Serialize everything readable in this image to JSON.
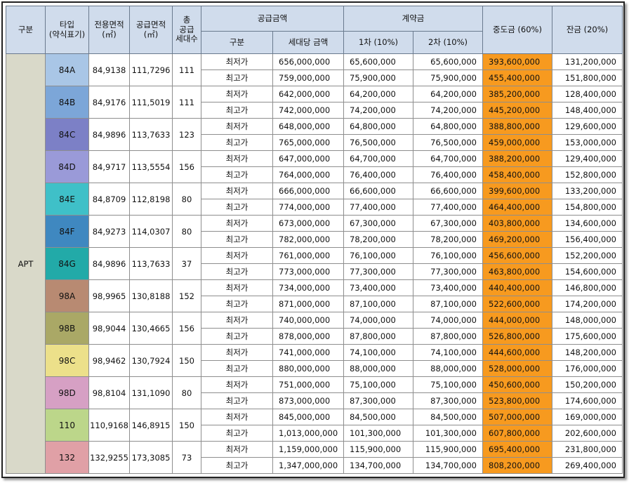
{
  "headers": {
    "category": "구분",
    "type": "타입\n(약식표기)",
    "exclusive_area": "전용면적\n(㎡)",
    "supply_area": "공급면적\n(㎡)",
    "households": "총\n공급\n세대수",
    "supply_amount": "공급금액",
    "sub_category": "구분",
    "unit_price": "세대당 금액",
    "deposit": "계약금",
    "deposit_1": "1차 (10%)",
    "deposit_2": "2차 (10%)",
    "middle_payment": "중도금 (60%)",
    "balance": "잔금 (20%)"
  },
  "category_value": "APT",
  "colors": {
    "header_bg": "#d0dcec",
    "category_bg": "#d9d9c9",
    "middle_payment_bg": "#f79a1f"
  },
  "types": [
    {
      "type": "84A",
      "color": "#a9c6e6",
      "exclusive": "84,9138",
      "supply": "111,7296",
      "households": "111",
      "rows": [
        {
          "label": "최저가",
          "price": "656,000,000",
          "d1": "65,600,000",
          "d2": "65,600,000",
          "mid": "393,600,000",
          "bal": "131,200,000"
        },
        {
          "label": "최고가",
          "price": "759,000,000",
          "d1": "75,900,000",
          "d2": "75,900,000",
          "mid": "455,400,000",
          "bal": "151,800,000"
        }
      ]
    },
    {
      "type": "84B",
      "color": "#7ca6d8",
      "exclusive": "84,9176",
      "supply": "111,5019",
      "households": "111",
      "rows": [
        {
          "label": "최저가",
          "price": "642,000,000",
          "d1": "64,200,000",
          "d2": "64,200,000",
          "mid": "385,200,000",
          "bal": "128,400,000"
        },
        {
          "label": "최고가",
          "price": "742,000,000",
          "d1": "74,200,000",
          "d2": "74,200,000",
          "mid": "445,200,000",
          "bal": "148,400,000"
        }
      ]
    },
    {
      "type": "84C",
      "color": "#7c80c6",
      "exclusive": "84,9896",
      "supply": "113,7633",
      "households": "123",
      "rows": [
        {
          "label": "최저가",
          "price": "648,000,000",
          "d1": "64,800,000",
          "d2": "64,800,000",
          "mid": "388,800,000",
          "bal": "129,600,000"
        },
        {
          "label": "최고가",
          "price": "765,000,000",
          "d1": "76,500,000",
          "d2": "76,500,000",
          "mid": "459,000,000",
          "bal": "153,000,000"
        }
      ]
    },
    {
      "type": "84D",
      "color": "#9a9ad8",
      "exclusive": "84,9717",
      "supply": "113,5554",
      "households": "156",
      "rows": [
        {
          "label": "최저가",
          "price": "647,000,000",
          "d1": "64,700,000",
          "d2": "64,700,000",
          "mid": "388,200,000",
          "bal": "129,400,000"
        },
        {
          "label": "최고가",
          "price": "764,000,000",
          "d1": "76,400,000",
          "d2": "76,400,000",
          "mid": "458,400,000",
          "bal": "152,800,000"
        }
      ]
    },
    {
      "type": "84E",
      "color": "#3fc0c8",
      "exclusive": "84,8709",
      "supply": "112,8198",
      "households": "80",
      "rows": [
        {
          "label": "최저가",
          "price": "666,000,000",
          "d1": "66,600,000",
          "d2": "66,600,000",
          "mid": "399,600,000",
          "bal": "133,200,000"
        },
        {
          "label": "최고가",
          "price": "774,000,000",
          "d1": "77,400,000",
          "d2": "77,400,000",
          "mid": "464,400,000",
          "bal": "154,800,000"
        }
      ]
    },
    {
      "type": "84F",
      "color": "#3f88c0",
      "exclusive": "84,9273",
      "supply": "114,0307",
      "households": "80",
      "rows": [
        {
          "label": "최저가",
          "price": "673,000,000",
          "d1": "67,300,000",
          "d2": "67,300,000",
          "mid": "403,800,000",
          "bal": "134,600,000"
        },
        {
          "label": "최고가",
          "price": "782,000,000",
          "d1": "78,200,000",
          "d2": "78,200,000",
          "mid": "469,200,000",
          "bal": "156,400,000"
        }
      ]
    },
    {
      "type": "84G",
      "color": "#22aaa8",
      "exclusive": "84,9896",
      "supply": "113,7633",
      "households": "37",
      "rows": [
        {
          "label": "최저가",
          "price": "761,000,000",
          "d1": "76,100,000",
          "d2": "76,100,000",
          "mid": "456,600,000",
          "bal": "152,200,000"
        },
        {
          "label": "최고가",
          "price": "773,000,000",
          "d1": "77,300,000",
          "d2": "77,300,000",
          "mid": "463,800,000",
          "bal": "154,600,000"
        }
      ]
    },
    {
      "type": "98A",
      "color": "#b88a72",
      "exclusive": "98,9965",
      "supply": "130,8188",
      "households": "152",
      "rows": [
        {
          "label": "최저가",
          "price": "734,000,000",
          "d1": "73,400,000",
          "d2": "73,400,000",
          "mid": "440,400,000",
          "bal": "146,800,000"
        },
        {
          "label": "최고가",
          "price": "871,000,000",
          "d1": "87,100,000",
          "d2": "87,100,000",
          "mid": "522,600,000",
          "bal": "174,200,000"
        }
      ]
    },
    {
      "type": "98B",
      "color": "#aaa866",
      "exclusive": "98,9044",
      "supply": "130,4665",
      "households": "156",
      "rows": [
        {
          "label": "최저가",
          "price": "740,000,000",
          "d1": "74,000,000",
          "d2": "74,000,000",
          "mid": "444,000,000",
          "bal": "148,000,000"
        },
        {
          "label": "최고가",
          "price": "878,000,000",
          "d1": "87,800,000",
          "d2": "87,800,000",
          "mid": "526,800,000",
          "bal": "175,600,000"
        }
      ]
    },
    {
      "type": "98C",
      "color": "#ece08a",
      "exclusive": "98,9462",
      "supply": "130,7924",
      "households": "150",
      "rows": [
        {
          "label": "최저가",
          "price": "741,000,000",
          "d1": "74,100,000",
          "d2": "74,100,000",
          "mid": "444,600,000",
          "bal": "148,200,000"
        },
        {
          "label": "최고가",
          "price": "880,000,000",
          "d1": "88,000,000",
          "d2": "88,000,000",
          "mid": "528,000,000",
          "bal": "176,000,000"
        }
      ]
    },
    {
      "type": "98D",
      "color": "#d6a0c4",
      "exclusive": "98,8104",
      "supply": "131,1090",
      "households": "80",
      "rows": [
        {
          "label": "최저가",
          "price": "751,000,000",
          "d1": "75,100,000",
          "d2": "75,100,000",
          "mid": "450,600,000",
          "bal": "150,200,000"
        },
        {
          "label": "최고가",
          "price": "873,000,000",
          "d1": "87,300,000",
          "d2": "87,300,000",
          "mid": "523,800,000",
          "bal": "174,600,000"
        }
      ]
    },
    {
      "type": "110",
      "color": "#bcd68a",
      "exclusive": "110,9168",
      "supply": "146,8915",
      "households": "150",
      "rows": [
        {
          "label": "최저가",
          "price": "845,000,000",
          "d1": "84,500,000",
          "d2": "84,500,000",
          "mid": "507,000,000",
          "bal": "169,000,000"
        },
        {
          "label": "최고가",
          "price": "1,013,000,000",
          "d1": "101,300,000",
          "d2": "101,300,000",
          "mid": "607,800,000",
          "bal": "202,600,000"
        }
      ]
    },
    {
      "type": "132",
      "color": "#e0a0a6",
      "exclusive": "132,9255",
      "supply": "173,3085",
      "households": "73",
      "rows": [
        {
          "label": "최저가",
          "price": "1,159,000,000",
          "d1": "115,900,000",
          "d2": "115,900,000",
          "mid": "695,400,000",
          "bal": "231,800,000"
        },
        {
          "label": "최고가",
          "price": "1,347,000,000",
          "d1": "134,700,000",
          "d2": "134,700,000",
          "mid": "808,200,000",
          "bal": "269,400,000"
        }
      ]
    }
  ]
}
